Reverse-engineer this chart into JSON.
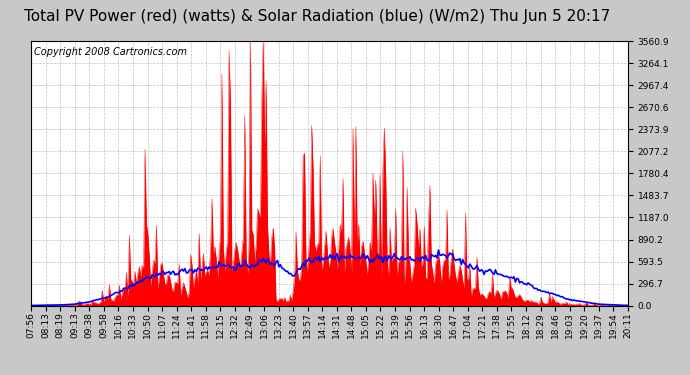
{
  "title": "Total PV Power (red) (watts) & Solar Radiation (blue) (W/m2) Thu Jun 5 20:17",
  "copyright_text": "Copyright 2008 Cartronics.com",
  "plot_bg_color": "#ffffff",
  "grid_color": "#b0b0b0",
  "red_fill_color": "#ff0000",
  "red_line_color": "#ff0000",
  "blue_line_color": "#0000ff",
  "y_max": 3560.9,
  "y_min": 0.0,
  "y_ticks": [
    0.0,
    296.7,
    593.5,
    890.2,
    1187.0,
    1483.7,
    1780.4,
    2077.2,
    2373.9,
    2670.6,
    2967.4,
    3264.1,
    3560.9
  ],
  "x_labels": [
    "07:56",
    "08:13",
    "08:19",
    "09:13",
    "09:38",
    "09:58",
    "10:16",
    "10:33",
    "10:50",
    "11:07",
    "11:24",
    "11:41",
    "11:58",
    "12:15",
    "12:32",
    "12:49",
    "13:06",
    "13:23",
    "13:40",
    "13:57",
    "14:14",
    "14:31",
    "14:48",
    "15:05",
    "15:22",
    "15:39",
    "15:56",
    "16:13",
    "16:30",
    "16:47",
    "17:04",
    "17:21",
    "17:38",
    "17:55",
    "18:12",
    "18:29",
    "18:46",
    "19:03",
    "19:20",
    "19:37",
    "19:54",
    "20:11"
  ],
  "title_fontsize": 11,
  "copyright_fontsize": 7,
  "tick_fontsize": 6.5,
  "title_color": "#000000",
  "outer_bg": "#c8c8c8"
}
